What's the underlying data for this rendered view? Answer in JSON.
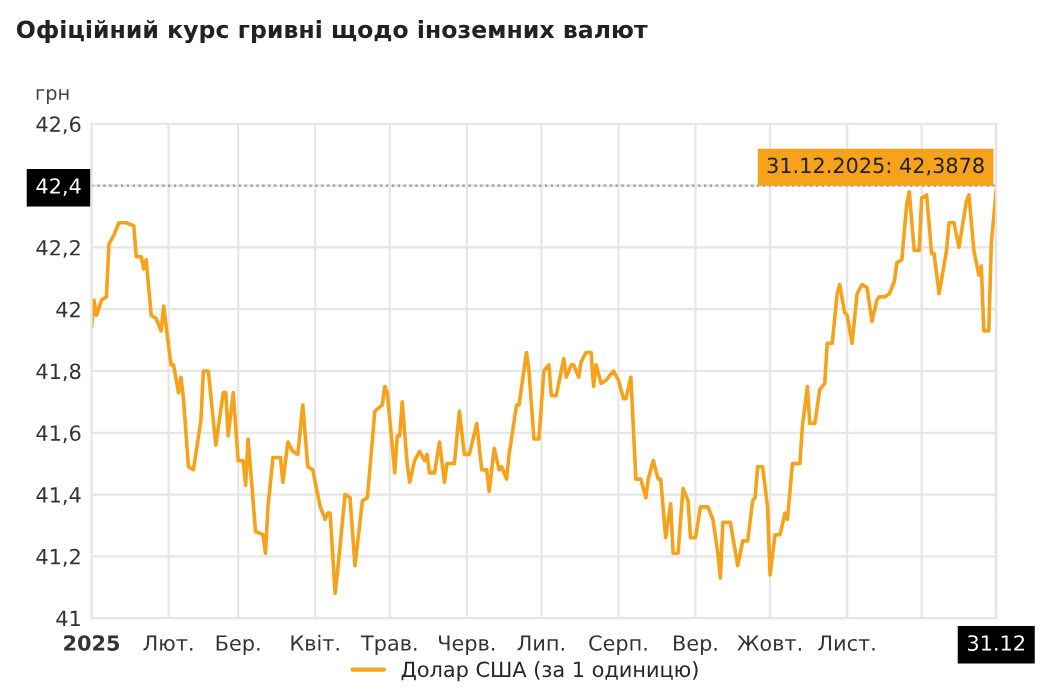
{
  "chart_data": {
    "type": "line",
    "title": "Офіційний курс гривні щодо іноземних валют",
    "ylabel": "грн",
    "xlim": [
      "2025-01-01",
      "2025-12-31"
    ],
    "ylim": [
      41,
      42.6
    ],
    "xticks": [
      {
        "value": "2025-01-01",
        "label": "2025"
      },
      {
        "value": "2025-02-01",
        "label": "Лют."
      },
      {
        "value": "2025-03-01",
        "label": "Бер."
      },
      {
        "value": "2025-04-01",
        "label": "Квіт."
      },
      {
        "value": "2025-05-01",
        "label": "Трав."
      },
      {
        "value": "2025-06-01",
        "label": "Черв."
      },
      {
        "value": "2025-07-01",
        "label": "Лип."
      },
      {
        "value": "2025-08-01",
        "label": "Серп."
      },
      {
        "value": "2025-09-01",
        "label": "Вер."
      },
      {
        "value": "2025-10-01",
        "label": "Жовт."
      },
      {
        "value": "2025-11-01",
        "label": "Лист."
      },
      {
        "value": "2025-12-01",
        "label": null
      },
      {
        "value": "2025-12-31",
        "label": "31.12"
      }
    ],
    "yticks": [
      {
        "value": 41,
        "label": "41"
      },
      {
        "value": 41.2,
        "label": "41,2"
      },
      {
        "value": 41.4,
        "label": "41,4"
      },
      {
        "value": 41.6,
        "label": "41,6"
      },
      {
        "value": 41.8,
        "label": "41,8"
      },
      {
        "value": 42,
        "label": "42"
      },
      {
        "value": 42.2,
        "label": "42,2"
      },
      {
        "value": 42.4,
        "label": "42,4"
      },
      {
        "value": 42.6,
        "label": "42,6"
      }
    ],
    "grid": true,
    "legend": "bottom",
    "marker": "none",
    "line_style": "solid",
    "ref_lines": [
      {
        "axis": "y",
        "value": 42.4,
        "color": "#999999",
        "line_style": "dotted"
      },
      {
        "axis": "x",
        "value": "2025-12-31",
        "color": "#999999",
        "line_style": "dotted"
      }
    ],
    "annotations": [
      {
        "text": "31.12.2025: 42,3878",
        "x": "2025-12-31",
        "y": 42.3878
      }
    ],
    "series": [
      {
        "name": "Долар США (за 1 одиницю)",
        "color": "#f7a21b",
        "x": [
          "2025-01-01",
          "2025-01-02",
          "2025-01-03",
          "2025-01-05",
          "2025-01-07",
          "2025-01-08",
          "2025-01-10",
          "2025-01-12",
          "2025-01-15",
          "2025-01-18",
          "2025-01-19",
          "2025-01-21",
          "2025-01-22",
          "2025-01-23",
          "2025-01-25",
          "2025-01-27",
          "2025-01-29",
          "2025-01-30",
          "2025-02-02",
          "2025-02-03",
          "2025-02-05",
          "2025-02-06",
          "2025-02-07",
          "2025-02-09",
          "2025-02-11",
          "2025-02-14",
          "2025-02-15",
          "2025-02-17",
          "2025-02-20",
          "2025-02-23",
          "2025-02-24",
          "2025-02-25",
          "2025-02-27",
          "2025-03-01",
          "2025-03-03",
          "2025-03-04",
          "2025-03-05",
          "2025-03-08",
          "2025-03-11",
          "2025-03-12",
          "2025-03-13",
          "2025-03-15",
          "2025-03-18",
          "2025-03-19",
          "2025-03-21",
          "2025-03-23",
          "2025-03-25",
          "2025-03-27",
          "2025-03-29",
          "2025-03-31",
          "2025-04-03",
          "2025-04-05",
          "2025-04-06",
          "2025-04-07",
          "2025-04-09",
          "2025-04-10",
          "2025-04-13",
          "2025-04-15",
          "2025-04-17",
          "2025-04-20",
          "2025-04-22",
          "2025-04-25",
          "2025-04-28",
          "2025-04-29",
          "2025-04-30",
          "2025-05-03",
          "2025-05-04",
          "2025-05-05",
          "2025-05-06",
          "2025-05-08",
          "2025-05-09",
          "2025-05-11",
          "2025-05-13",
          "2025-05-15",
          "2025-05-16",
          "2025-05-17",
          "2025-05-19",
          "2025-05-21",
          "2025-05-23",
          "2025-05-24",
          "2025-05-27",
          "2025-05-29",
          "2025-05-31",
          "2025-06-02",
          "2025-06-05",
          "2025-06-07",
          "2025-06-09",
          "2025-06-10",
          "2025-06-12",
          "2025-06-14",
          "2025-06-15",
          "2025-06-17",
          "2025-06-18",
          "2025-06-21",
          "2025-06-22",
          "2025-06-25",
          "2025-06-26",
          "2025-06-28",
          "2025-06-30",
          "2025-07-02",
          "2025-07-04",
          "2025-07-05",
          "2025-07-07",
          "2025-07-10",
          "2025-07-11",
          "2025-07-13",
          "2025-07-14",
          "2025-07-16",
          "2025-07-17",
          "2025-07-19",
          "2025-07-21",
          "2025-07-22",
          "2025-07-23",
          "2025-07-25",
          "2025-07-27",
          "2025-07-30",
          "2025-08-01",
          "2025-08-03",
          "2025-08-04",
          "2025-08-06",
          "2025-08-08",
          "2025-08-10",
          "2025-08-12",
          "2025-08-13",
          "2025-08-15",
          "2025-08-17",
          "2025-08-18",
          "2025-08-20",
          "2025-08-22",
          "2025-08-23",
          "2025-08-25",
          "2025-08-27",
          "2025-08-29",
          "2025-08-30",
          "2025-09-01",
          "2025-09-03",
          "2025-09-06",
          "2025-09-08",
          "2025-09-10",
          "2025-09-11",
          "2025-09-12",
          "2025-09-15",
          "2025-09-18",
          "2025-09-20",
          "2025-09-22",
          "2025-09-24",
          "2025-09-25",
          "2025-09-26",
          "2025-09-28",
          "2025-09-30",
          "2025-10-01",
          "2025-10-03",
          "2025-10-05",
          "2025-10-07",
          "2025-10-08",
          "2025-10-10",
          "2025-10-13",
          "2025-10-14",
          "2025-10-16",
          "2025-10-17",
          "2025-10-19",
          "2025-10-21",
          "2025-10-23",
          "2025-10-24",
          "2025-10-26",
          "2025-10-28",
          "2025-10-29",
          "2025-10-31",
          "2025-11-01",
          "2025-11-03",
          "2025-11-05",
          "2025-11-07",
          "2025-11-09",
          "2025-11-11",
          "2025-11-13",
          "2025-11-14",
          "2025-11-16",
          "2025-11-18",
          "2025-11-20",
          "2025-11-21",
          "2025-11-23",
          "2025-11-25",
          "2025-11-26",
          "2025-11-28",
          "2025-11-30",
          "2025-12-01",
          "2025-12-03",
          "2025-12-05",
          "2025-12-06",
          "2025-12-08",
          "2025-12-11",
          "2025-12-12",
          "2025-12-14",
          "2025-12-16",
          "2025-12-17",
          "2025-12-19",
          "2025-12-20",
          "2025-12-22",
          "2025-12-24",
          "2025-12-25",
          "2025-12-26",
          "2025-12-28",
          "2025-12-29",
          "2025-12-31"
        ],
        "values": [
          41.94,
          42.03,
          41.98,
          42.03,
          42.04,
          42.21,
          42.24,
          42.28,
          42.28,
          42.27,
          42.17,
          42.17,
          42.13,
          42.16,
          41.98,
          41.97,
          41.93,
          42.01,
          41.82,
          41.82,
          41.73,
          41.78,
          41.71,
          41.49,
          41.48,
          41.64,
          41.8,
          41.8,
          41.56,
          41.73,
          41.73,
          41.59,
          41.73,
          41.51,
          41.51,
          41.43,
          41.58,
          41.28,
          41.27,
          41.21,
          41.36,
          41.52,
          41.52,
          41.44,
          41.57,
          41.54,
          41.53,
          41.69,
          41.49,
          41.48,
          41.36,
          41.32,
          41.34,
          41.34,
          41.08,
          41.15,
          41.4,
          41.39,
          41.17,
          41.38,
          41.39,
          41.67,
          41.69,
          41.75,
          41.73,
          41.47,
          41.59,
          41.59,
          41.7,
          41.5,
          41.44,
          41.51,
          41.54,
          41.51,
          41.53,
          41.47,
          41.47,
          41.57,
          41.44,
          41.5,
          41.5,
          41.67,
          41.53,
          41.53,
          41.63,
          41.48,
          41.48,
          41.41,
          41.55,
          41.48,
          41.49,
          41.45,
          41.53,
          41.69,
          41.69,
          41.86,
          41.8,
          41.58,
          41.58,
          41.8,
          41.82,
          41.72,
          41.72,
          41.84,
          41.78,
          41.82,
          41.82,
          41.78,
          41.83,
          41.86,
          41.86,
          41.75,
          41.82,
          41.76,
          41.77,
          41.8,
          41.77,
          41.71,
          41.71,
          41.78,
          41.45,
          41.45,
          41.39,
          41.45,
          41.51,
          41.45,
          41.45,
          41.26,
          41.37,
          41.21,
          41.21,
          41.42,
          41.38,
          41.26,
          41.26,
          41.36,
          41.36,
          41.32,
          41.21,
          41.13,
          41.31,
          41.31,
          41.17,
          41.25,
          41.25,
          41.38,
          41.39,
          41.49,
          41.49,
          41.36,
          41.14,
          41.27,
          41.27,
          41.34,
          41.32,
          41.5,
          41.5,
          41.62,
          41.75,
          41.63,
          41.63,
          41.74,
          41.76,
          41.89,
          41.89,
          42.05,
          42.08,
          41.99,
          41.98,
          41.89,
          42.05,
          42.08,
          42.07,
          41.96,
          42.03,
          42.04,
          42.04,
          42.05,
          42.09,
          42.15,
          42.16,
          42.34,
          42.38,
          42.19,
          42.19,
          42.36,
          42.37,
          42.18,
          42.18,
          42.05,
          42.19,
          42.28,
          42.28,
          42.2,
          42.25,
          42.35,
          42.37,
          42.19,
          42.11,
          42.14,
          41.93,
          41.93,
          42.21,
          42.3878
        ]
      }
    ]
  }
}
